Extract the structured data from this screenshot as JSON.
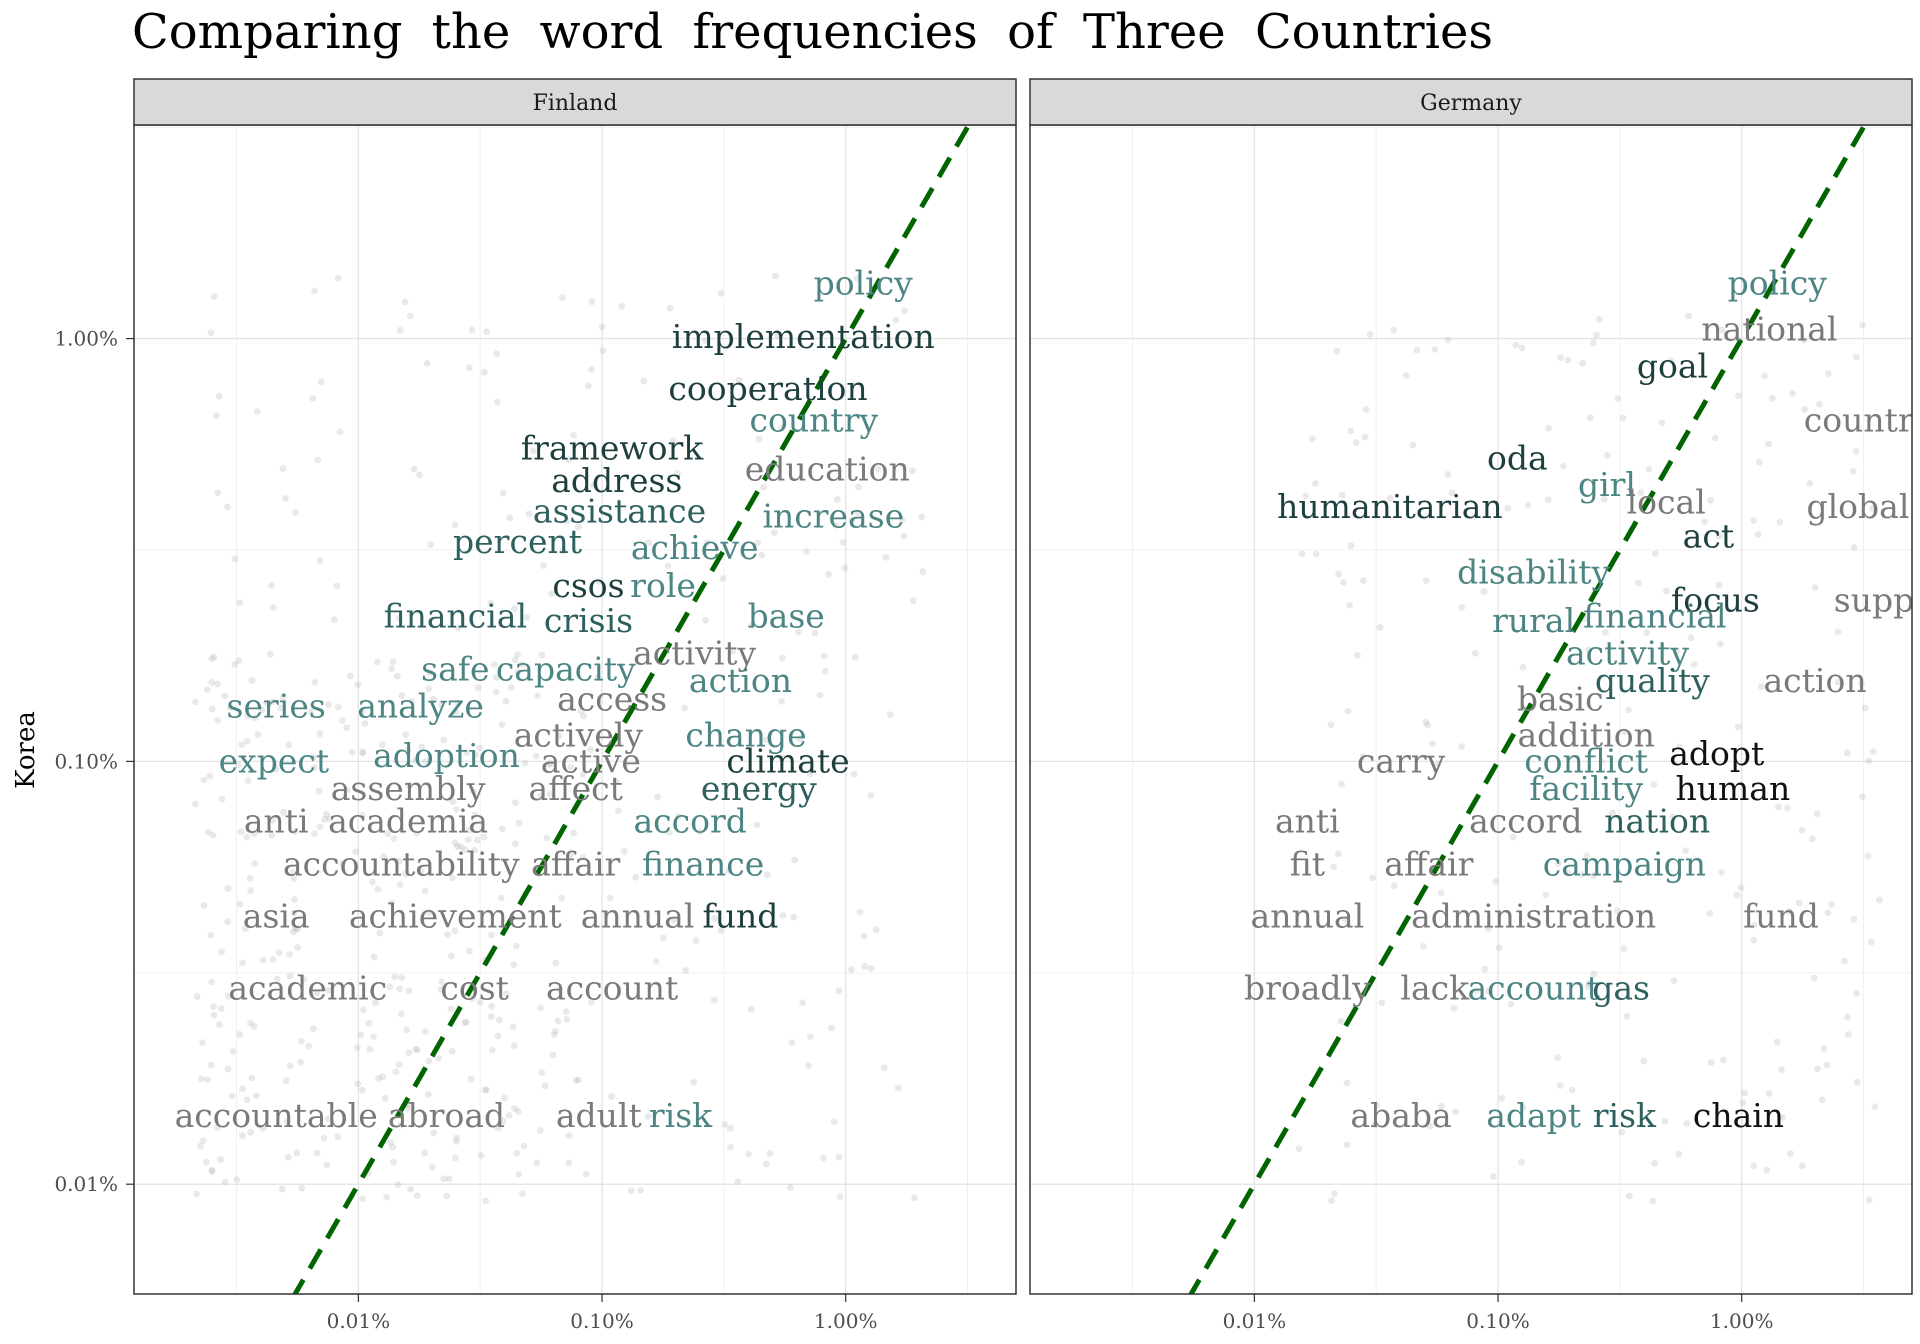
{
  "chart_data": {
    "type": "scatter",
    "title": "Comparing the word frequencies of Three Countries",
    "ylabel": "Korea",
    "xlabel": "",
    "x_scale": "log10",
    "y_scale": "log10",
    "x_ticks": [
      {
        "value": 0.0001,
        "label": "0.01%"
      },
      {
        "value": 0.001,
        "label": "0.10%"
      },
      {
        "value": 0.01,
        "label": "1.00%"
      }
    ],
    "y_ticks": [
      {
        "value": 0.0001,
        "label": "0.01%"
      },
      {
        "value": 0.001,
        "label": "0.10%"
      },
      {
        "value": 0.01,
        "label": "1.00%"
      }
    ],
    "xlim": [
      1.2e-05,
      0.05
    ],
    "ylim": [
      5.5e-05,
      0.032
    ],
    "grid": true,
    "reference_line": {
      "slope": 1,
      "color": "#006400",
      "style": "dashed"
    },
    "colors": {
      "dark": "#1f3f3f",
      "mid": "#2f6060",
      "teal": "#4d8585",
      "gray": "#7a7a7a",
      "black": "#111111",
      "strip": "#d9d9d9",
      "point": "#b0b0b0"
    },
    "panels": [
      {
        "strip": "Finland",
        "words": [
          {
            "t": "policy",
            "x": 0.0118,
            "y": 0.0135,
            "c": "teal"
          },
          {
            "t": "implementation",
            "x": 0.0067,
            "y": 0.0101,
            "c": "dark"
          },
          {
            "t": "cooperation",
            "x": 0.0048,
            "y": 0.0076,
            "c": "dark"
          },
          {
            "t": "country",
            "x": 0.0074,
            "y": 0.0064,
            "c": "teal"
          },
          {
            "t": "framework",
            "x": 0.0011,
            "y": 0.0055,
            "c": "dark"
          },
          {
            "t": "education",
            "x": 0.0084,
            "y": 0.0049,
            "c": "gray"
          },
          {
            "t": "address",
            "x": 0.00115,
            "y": 0.0046,
            "c": "dark"
          },
          {
            "t": "assistance",
            "x": 0.00118,
            "y": 0.0039,
            "c": "mid"
          },
          {
            "t": "increase",
            "x": 0.0089,
            "y": 0.0038,
            "c": "teal"
          },
          {
            "t": "percent",
            "x": 0.00045,
            "y": 0.0033,
            "c": "mid"
          },
          {
            "t": "achieve",
            "x": 0.0024,
            "y": 0.0032,
            "c": "teal"
          },
          {
            "t": "csos",
            "x": 0.00088,
            "y": 0.0026,
            "c": "dark"
          },
          {
            "t": "role",
            "x": 0.00178,
            "y": 0.0026,
            "c": "teal"
          },
          {
            "t": "financial",
            "x": 0.00025,
            "y": 0.0022,
            "c": "mid"
          },
          {
            "t": "crisis",
            "x": 0.00088,
            "y": 0.00215,
            "c": "mid"
          },
          {
            "t": "base",
            "x": 0.0057,
            "y": 0.0022,
            "c": "teal"
          },
          {
            "t": "activity",
            "x": 0.0024,
            "y": 0.0018,
            "c": "gray"
          },
          {
            "t": "safe",
            "x": 0.00025,
            "y": 0.00165,
            "c": "teal"
          },
          {
            "t": "capacity",
            "x": 0.00071,
            "y": 0.00165,
            "c": "teal"
          },
          {
            "t": "action",
            "x": 0.0037,
            "y": 0.00155,
            "c": "teal"
          },
          {
            "t": "access",
            "x": 0.0011,
            "y": 0.0014,
            "c": "gray"
          },
          {
            "t": "series",
            "x": 4.6e-05,
            "y": 0.00135,
            "c": "teal"
          },
          {
            "t": "analyze",
            "x": 0.00018,
            "y": 0.00135,
            "c": "teal"
          },
          {
            "t": "actively",
            "x": 0.0008,
            "y": 0.00115,
            "c": "gray"
          },
          {
            "t": "change",
            "x": 0.0039,
            "y": 0.00115,
            "c": "teal"
          },
          {
            "t": "adoption",
            "x": 0.00023,
            "y": 0.00103,
            "c": "teal"
          },
          {
            "t": "expect",
            "x": 4.5e-05,
            "y": 0.001,
            "c": "teal"
          },
          {
            "t": "active",
            "x": 0.0009,
            "y": 0.001,
            "c": "gray"
          },
          {
            "t": "climate",
            "x": 0.0058,
            "y": 0.001,
            "c": "dark"
          },
          {
            "t": "assembly",
            "x": 0.00016,
            "y": 0.00086,
            "c": "gray"
          },
          {
            "t": "affect",
            "x": 0.00078,
            "y": 0.00086,
            "c": "gray"
          },
          {
            "t": "energy",
            "x": 0.0044,
            "y": 0.00086,
            "c": "mid"
          },
          {
            "t": "anti",
            "x": 4.6e-05,
            "y": 0.00072,
            "c": "gray"
          },
          {
            "t": "academia",
            "x": 0.00016,
            "y": 0.00072,
            "c": "gray"
          },
          {
            "t": "accord",
            "x": 0.0023,
            "y": 0.00072,
            "c": "teal"
          },
          {
            "t": "accountability",
            "x": 0.00015,
            "y": 0.00057,
            "c": "gray"
          },
          {
            "t": "affair",
            "x": 0.00078,
            "y": 0.00057,
            "c": "gray"
          },
          {
            "t": "finance",
            "x": 0.0026,
            "y": 0.00057,
            "c": "teal"
          },
          {
            "t": "asia",
            "x": 4.6e-05,
            "y": 0.00043,
            "c": "gray"
          },
          {
            "t": "achievement",
            "x": 0.00025,
            "y": 0.00043,
            "c": "gray"
          },
          {
            "t": "annual",
            "x": 0.0014,
            "y": 0.00043,
            "c": "gray"
          },
          {
            "t": "fund",
            "x": 0.0037,
            "y": 0.00043,
            "c": "dark"
          },
          {
            "t": "academic",
            "x": 6.2e-05,
            "y": 0.00029,
            "c": "gray"
          },
          {
            "t": "cost",
            "x": 0.0003,
            "y": 0.00029,
            "c": "gray"
          },
          {
            "t": "account",
            "x": 0.0011,
            "y": 0.00029,
            "c": "gray"
          },
          {
            "t": "accountable",
            "x": 4.6e-05,
            "y": 0.000145,
            "c": "gray"
          },
          {
            "t": "abroad",
            "x": 0.00023,
            "y": 0.000145,
            "c": "gray"
          },
          {
            "t": "adult",
            "x": 0.00097,
            "y": 0.000145,
            "c": "gray"
          },
          {
            "t": "risk",
            "x": 0.0021,
            "y": 0.000145,
            "c": "teal"
          }
        ]
      },
      {
        "strip": "Germany",
        "words": [
          {
            "t": "policy",
            "x": 0.014,
            "y": 0.0135,
            "c": "teal"
          },
          {
            "t": "national",
            "x": 0.013,
            "y": 0.0105,
            "c": "gray"
          },
          {
            "t": "goal",
            "x": 0.0052,
            "y": 0.0086,
            "c": "dark"
          },
          {
            "t": "country",
            "x": 0.033,
            "y": 0.0064,
            "c": "gray"
          },
          {
            "t": "oda",
            "x": 0.0012,
            "y": 0.0052,
            "c": "dark"
          },
          {
            "t": "girl",
            "x": 0.0028,
            "y": 0.0045,
            "c": "teal"
          },
          {
            "t": "local",
            "x": 0.0049,
            "y": 0.0041,
            "c": "gray"
          },
          {
            "t": "humanitarian",
            "x": 0.00036,
            "y": 0.004,
            "c": "dark"
          },
          {
            "t": "global",
            "x": 0.03,
            "y": 0.004,
            "c": "gray"
          },
          {
            "t": "act",
            "x": 0.0073,
            "y": 0.0034,
            "c": "dark"
          },
          {
            "t": "disability",
            "x": 0.0014,
            "y": 0.0028,
            "c": "teal"
          },
          {
            "t": "focus",
            "x": 0.0078,
            "y": 0.0024,
            "c": "dark"
          },
          {
            "t": "support",
            "x": 0.044,
            "y": 0.0024,
            "c": "gray"
          },
          {
            "t": "financial",
            "x": 0.0044,
            "y": 0.0022,
            "c": "teal"
          },
          {
            "t": "rural",
            "x": 0.0014,
            "y": 0.00215,
            "c": "teal"
          },
          {
            "t": "activity",
            "x": 0.0034,
            "y": 0.0018,
            "c": "teal"
          },
          {
            "t": "quality",
            "x": 0.0043,
            "y": 0.00155,
            "c": "mid"
          },
          {
            "t": "action",
            "x": 0.02,
            "y": 0.00155,
            "c": "gray"
          },
          {
            "t": "basic",
            "x": 0.0018,
            "y": 0.0014,
            "c": "gray"
          },
          {
            "t": "addition",
            "x": 0.0023,
            "y": 0.00115,
            "c": "gray"
          },
          {
            "t": "adopt",
            "x": 0.0079,
            "y": 0.00104,
            "c": "black"
          },
          {
            "t": "carry",
            "x": 0.0004,
            "y": 0.001,
            "c": "gray"
          },
          {
            "t": "conflict",
            "x": 0.0023,
            "y": 0.001,
            "c": "teal"
          },
          {
            "t": "facility",
            "x": 0.0023,
            "y": 0.00086,
            "c": "teal"
          },
          {
            "t": "human",
            "x": 0.0092,
            "y": 0.00086,
            "c": "black"
          },
          {
            "t": "anti",
            "x": 0.000165,
            "y": 0.00072,
            "c": "gray"
          },
          {
            "t": "accord",
            "x": 0.0013,
            "y": 0.00072,
            "c": "gray"
          },
          {
            "t": "nation",
            "x": 0.0045,
            "y": 0.00072,
            "c": "mid"
          },
          {
            "t": "fit",
            "x": 0.000165,
            "y": 0.00057,
            "c": "gray"
          },
          {
            "t": "affair",
            "x": 0.00052,
            "y": 0.00057,
            "c": "gray"
          },
          {
            "t": "campaign",
            "x": 0.0033,
            "y": 0.00057,
            "c": "teal"
          },
          {
            "t": "annual",
            "x": 0.000165,
            "y": 0.00043,
            "c": "gray"
          },
          {
            "t": "administration",
            "x": 0.0014,
            "y": 0.00043,
            "c": "gray"
          },
          {
            "t": "fund",
            "x": 0.0145,
            "y": 0.00043,
            "c": "gray"
          },
          {
            "t": "broadly",
            "x": 0.000165,
            "y": 0.00029,
            "c": "gray"
          },
          {
            "t": "lack",
            "x": 0.00055,
            "y": 0.00029,
            "c": "gray"
          },
          {
            "t": "account",
            "x": 0.0014,
            "y": 0.00029,
            "c": "teal"
          },
          {
            "t": "gas",
            "x": 0.0032,
            "y": 0.00029,
            "c": "mid"
          },
          {
            "t": "ababa",
            "x": 0.0004,
            "y": 0.000145,
            "c": "gray"
          },
          {
            "t": "adapt",
            "x": 0.0014,
            "y": 0.000145,
            "c": "teal"
          },
          {
            "t": "risk",
            "x": 0.0033,
            "y": 0.000145,
            "c": "mid"
          },
          {
            "t": "chain",
            "x": 0.0097,
            "y": 0.000145,
            "c": "black"
          }
        ]
      }
    ]
  }
}
